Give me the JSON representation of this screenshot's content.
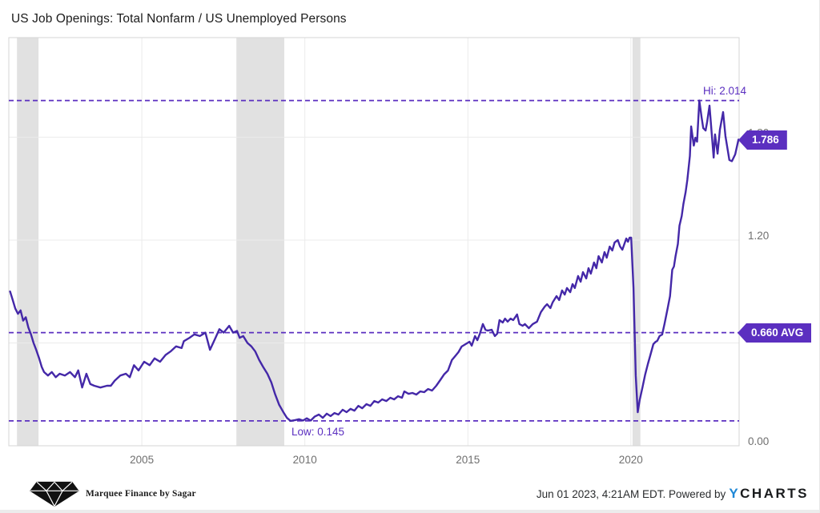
{
  "title": "US Job Openings: Total Nonfarm / US Unemployed Persons",
  "colors": {
    "line": "#4428a8",
    "annotation": "#5b2fc0",
    "badge_bg": "#5b2fc0",
    "recession_band": "#e1e1e1",
    "grid": "#ebebeb",
    "plot_border": "#d5d5d5",
    "tick_text": "#6f6f6f",
    "ycharts_blue": "#1e87d6"
  },
  "chart_data": {
    "type": "line",
    "title": "US Job Openings: Total Nonfarm / US Unemployed Persons",
    "xlabel": "",
    "ylabel": "",
    "xlim": [
      2000.92,
      2023.32
    ],
    "ylim": [
      0,
      2.381
    ],
    "grid": "on",
    "legend": "none",
    "x_ticks": [
      {
        "value": 2005,
        "label": "2005"
      },
      {
        "value": 2010,
        "label": "2010"
      },
      {
        "value": 2015,
        "label": "2015"
      },
      {
        "value": 2020,
        "label": "2020"
      }
    ],
    "y_ticks": [
      {
        "value": 0.0,
        "label": "0.00"
      },
      {
        "value": 0.6,
        "label": "0.60"
      },
      {
        "value": 1.2,
        "label": "1.20"
      },
      {
        "value": 1.8,
        "label": "1.80"
      }
    ],
    "recession_bands": [
      [
        2001.17,
        2001.83
      ],
      [
        2007.9,
        2009.37
      ],
      [
        2020.05,
        2020.29
      ]
    ],
    "annotations": {
      "hi": {
        "value": 2.014,
        "label": "Hi: 2.014"
      },
      "low": {
        "value": 0.145,
        "label": "Low: 0.145"
      },
      "avg": {
        "value": 0.66,
        "label": "0.660 AVG"
      },
      "last": {
        "value": 1.786,
        "label": "1.786"
      }
    },
    "series": [
      {
        "name": "US Job Openings: Total Nonfarm / US Unemployed Persons",
        "points": [
          [
            2000.96,
            0.9
          ],
          [
            2001.04,
            0.85
          ],
          [
            2001.12,
            0.8
          ],
          [
            2001.2,
            0.77
          ],
          [
            2001.28,
            0.79
          ],
          [
            2001.36,
            0.73
          ],
          [
            2001.44,
            0.75
          ],
          [
            2001.52,
            0.69
          ],
          [
            2001.6,
            0.65
          ],
          [
            2001.68,
            0.6
          ],
          [
            2001.76,
            0.56
          ],
          [
            2001.85,
            0.51
          ],
          [
            2001.93,
            0.46
          ],
          [
            2002.0,
            0.43
          ],
          [
            2002.12,
            0.41
          ],
          [
            2002.24,
            0.43
          ],
          [
            2002.36,
            0.4
          ],
          [
            2002.48,
            0.42
          ],
          [
            2002.64,
            0.41
          ],
          [
            2002.8,
            0.43
          ],
          [
            2002.95,
            0.4
          ],
          [
            2003.05,
            0.44
          ],
          [
            2003.17,
            0.34
          ],
          [
            2003.3,
            0.42
          ],
          [
            2003.42,
            0.36
          ],
          [
            2003.54,
            0.35
          ],
          [
            2003.73,
            0.34
          ],
          [
            2003.93,
            0.35
          ],
          [
            2004.05,
            0.35
          ],
          [
            2004.17,
            0.38
          ],
          [
            2004.34,
            0.41
          ],
          [
            2004.51,
            0.42
          ],
          [
            2004.63,
            0.4
          ],
          [
            2004.76,
            0.47
          ],
          [
            2004.9,
            0.44
          ],
          [
            2005.07,
            0.49
          ],
          [
            2005.24,
            0.47
          ],
          [
            2005.39,
            0.51
          ],
          [
            2005.56,
            0.49
          ],
          [
            2005.73,
            0.53
          ],
          [
            2005.88,
            0.55
          ],
          [
            2006.05,
            0.58
          ],
          [
            2006.22,
            0.57
          ],
          [
            2006.29,
            0.61
          ],
          [
            2006.46,
            0.63
          ],
          [
            2006.61,
            0.65
          ],
          [
            2006.78,
            0.64
          ],
          [
            2006.95,
            0.66
          ],
          [
            2007.09,
            0.56
          ],
          [
            2007.26,
            0.63
          ],
          [
            2007.38,
            0.68
          ],
          [
            2007.51,
            0.66
          ],
          [
            2007.68,
            0.7
          ],
          [
            2007.8,
            0.66
          ],
          [
            2007.92,
            0.67
          ],
          [
            2008.0,
            0.63
          ],
          [
            2008.11,
            0.64
          ],
          [
            2008.24,
            0.6
          ],
          [
            2008.36,
            0.58
          ],
          [
            2008.48,
            0.55
          ],
          [
            2008.6,
            0.5
          ],
          [
            2008.72,
            0.46
          ],
          [
            2008.85,
            0.42
          ],
          [
            2008.97,
            0.37
          ],
          [
            2009.09,
            0.3
          ],
          [
            2009.21,
            0.24
          ],
          [
            2009.33,
            0.2
          ],
          [
            2009.45,
            0.163
          ],
          [
            2009.56,
            0.145
          ],
          [
            2009.7,
            0.15
          ],
          [
            2009.82,
            0.155
          ],
          [
            2009.94,
            0.147
          ],
          [
            2010.06,
            0.16
          ],
          [
            2010.18,
            0.147
          ],
          [
            2010.3,
            0.17
          ],
          [
            2010.43,
            0.182
          ],
          [
            2010.55,
            0.163
          ],
          [
            2010.67,
            0.187
          ],
          [
            2010.79,
            0.173
          ],
          [
            2010.91,
            0.191
          ],
          [
            2011.03,
            0.182
          ],
          [
            2011.16,
            0.21
          ],
          [
            2011.28,
            0.196
          ],
          [
            2011.4,
            0.215
          ],
          [
            2011.52,
            0.205
          ],
          [
            2011.64,
            0.233
          ],
          [
            2011.76,
            0.219
          ],
          [
            2011.89,
            0.243
          ],
          [
            2012.01,
            0.233
          ],
          [
            2012.13,
            0.261
          ],
          [
            2012.25,
            0.252
          ],
          [
            2012.37,
            0.271
          ],
          [
            2012.5,
            0.261
          ],
          [
            2012.62,
            0.28
          ],
          [
            2012.74,
            0.271
          ],
          [
            2012.86,
            0.289
          ],
          [
            2012.98,
            0.28
          ],
          [
            2013.05,
            0.317
          ],
          [
            2013.18,
            0.303
          ],
          [
            2013.3,
            0.308
          ],
          [
            2013.42,
            0.299
          ],
          [
            2013.54,
            0.317
          ],
          [
            2013.66,
            0.313
          ],
          [
            2013.78,
            0.331
          ],
          [
            2013.9,
            0.322
          ],
          [
            2014.03,
            0.35
          ],
          [
            2014.15,
            0.383
          ],
          [
            2014.27,
            0.416
          ],
          [
            2014.39,
            0.439
          ],
          [
            2014.51,
            0.5
          ],
          [
            2014.61,
            0.523
          ],
          [
            2014.71,
            0.546
          ],
          [
            2014.81,
            0.579
          ],
          [
            2014.93,
            0.593
          ],
          [
            2015.05,
            0.607
          ],
          [
            2015.12,
            0.584
          ],
          [
            2015.22,
            0.64
          ],
          [
            2015.29,
            0.616
          ],
          [
            2015.37,
            0.654
          ],
          [
            2015.46,
            0.71
          ],
          [
            2015.54,
            0.677
          ],
          [
            2015.61,
            0.672
          ],
          [
            2015.73,
            0.677
          ],
          [
            2015.83,
            0.64
          ],
          [
            2015.9,
            0.654
          ],
          [
            2015.97,
            0.733
          ],
          [
            2016.07,
            0.719
          ],
          [
            2016.14,
            0.742
          ],
          [
            2016.22,
            0.724
          ],
          [
            2016.31,
            0.742
          ],
          [
            2016.39,
            0.733
          ],
          [
            2016.51,
            0.766
          ],
          [
            2016.58,
            0.71
          ],
          [
            2016.68,
            0.7
          ],
          [
            2016.75,
            0.71
          ],
          [
            2016.87,
            0.686
          ],
          [
            2016.99,
            0.71
          ],
          [
            2017.12,
            0.724
          ],
          [
            2017.24,
            0.78
          ],
          [
            2017.36,
            0.812
          ],
          [
            2017.43,
            0.826
          ],
          [
            2017.53,
            0.803
          ],
          [
            2017.6,
            0.836
          ],
          [
            2017.72,
            0.873
          ],
          [
            2017.8,
            0.85
          ],
          [
            2017.89,
            0.906
          ],
          [
            2017.97,
            0.882
          ],
          [
            2018.04,
            0.92
          ],
          [
            2018.14,
            0.896
          ],
          [
            2018.21,
            0.943
          ],
          [
            2018.28,
            0.92
          ],
          [
            2018.38,
            0.99
          ],
          [
            2018.46,
            0.957
          ],
          [
            2018.53,
            1.013
          ],
          [
            2018.63,
            0.976
          ],
          [
            2018.7,
            1.036
          ],
          [
            2018.77,
            1.004
          ],
          [
            2018.87,
            1.069
          ],
          [
            2018.94,
            1.036
          ],
          [
            2019.01,
            1.106
          ],
          [
            2019.11,
            1.069
          ],
          [
            2019.19,
            1.13
          ],
          [
            2019.26,
            1.097
          ],
          [
            2019.35,
            1.162
          ],
          [
            2019.43,
            1.139
          ],
          [
            2019.5,
            1.186
          ],
          [
            2019.6,
            1.2
          ],
          [
            2019.67,
            1.162
          ],
          [
            2019.74,
            1.144
          ],
          [
            2019.79,
            1.172
          ],
          [
            2019.86,
            1.209
          ],
          [
            2019.91,
            1.19
          ],
          [
            2019.96,
            1.214
          ],
          [
            2020.01,
            1.214
          ],
          [
            2020.08,
            0.92
          ],
          [
            2020.15,
            0.41
          ],
          [
            2020.21,
            0.196
          ],
          [
            2020.27,
            0.266
          ],
          [
            2020.35,
            0.336
          ],
          [
            2020.44,
            0.416
          ],
          [
            2020.52,
            0.476
          ],
          [
            2020.59,
            0.523
          ],
          [
            2020.69,
            0.593
          ],
          [
            2020.76,
            0.607
          ],
          [
            2020.81,
            0.612
          ],
          [
            2020.88,
            0.64
          ],
          [
            2020.96,
            0.649
          ],
          [
            2021.03,
            0.71
          ],
          [
            2021.13,
            0.803
          ],
          [
            2021.2,
            0.873
          ],
          [
            2021.27,
            1.027
          ],
          [
            2021.32,
            1.046
          ],
          [
            2021.37,
            1.106
          ],
          [
            2021.44,
            1.177
          ],
          [
            2021.49,
            1.284
          ],
          [
            2021.56,
            1.34
          ],
          [
            2021.61,
            1.41
          ],
          [
            2021.68,
            1.48
          ],
          [
            2021.73,
            1.55
          ],
          [
            2021.81,
            1.69
          ],
          [
            2021.85,
            1.863
          ],
          [
            2021.93,
            1.751
          ],
          [
            2021.98,
            1.797
          ],
          [
            2022.03,
            1.774
          ],
          [
            2022.1,
            2.014
          ],
          [
            2022.17,
            1.914
          ],
          [
            2022.22,
            1.853
          ],
          [
            2022.29,
            1.839
          ],
          [
            2022.34,
            1.89
          ],
          [
            2022.41,
            1.984
          ],
          [
            2022.49,
            1.797
          ],
          [
            2022.54,
            1.681
          ],
          [
            2022.58,
            1.816
          ],
          [
            2022.66,
            1.704
          ],
          [
            2022.73,
            1.844
          ],
          [
            2022.83,
            1.947
          ],
          [
            2022.9,
            1.807
          ],
          [
            2023.02,
            1.667
          ],
          [
            2023.1,
            1.66
          ],
          [
            2023.2,
            1.7
          ],
          [
            2023.3,
            1.786
          ]
        ]
      }
    ]
  },
  "footer": {
    "brand": "Marquee Finance by Sagar",
    "timestamp": "Jun 01 2023, 4:21AM EDT. Powered by",
    "ycharts_y": "Y",
    "ycharts_rest": "CHARTS"
  }
}
